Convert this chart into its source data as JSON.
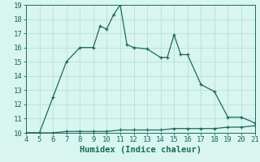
{
  "title": "",
  "xlabel": "Humidex (Indice chaleur)",
  "x_values": [
    4,
    5,
    6,
    7,
    8,
    9,
    9.5,
    10,
    10.5,
    11,
    11.5,
    12,
    13,
    14,
    14.5,
    15,
    15.5,
    16,
    17,
    18,
    19,
    20,
    21
  ],
  "y_values": [
    10,
    10,
    12.5,
    15,
    16,
    16,
    17.5,
    17.3,
    18.3,
    19,
    16.2,
    16,
    15.9,
    15.3,
    15.3,
    16.9,
    15.5,
    15.5,
    13.4,
    12.9,
    11.1,
    11.1,
    10.7
  ],
  "x2_values": [
    4,
    5,
    6,
    7,
    8,
    9,
    10,
    11,
    12,
    13,
    14,
    15,
    16,
    17,
    18,
    19,
    20,
    21
  ],
  "y2_values": [
    10,
    10,
    10,
    10.1,
    10.1,
    10.1,
    10.1,
    10.2,
    10.2,
    10.2,
    10.2,
    10.3,
    10.3,
    10.3,
    10.3,
    10.4,
    10.4,
    10.5
  ],
  "xlim": [
    4,
    21
  ],
  "ylim": [
    10,
    19
  ],
  "xticks": [
    4,
    5,
    6,
    7,
    8,
    9,
    10,
    11,
    12,
    13,
    14,
    15,
    16,
    17,
    18,
    19,
    20,
    21
  ],
  "yticks": [
    10,
    11,
    12,
    13,
    14,
    15,
    16,
    17,
    18,
    19
  ],
  "line_color": "#1a6b5a",
  "bg_color": "#d8f5f0",
  "grid_color": "#b0ddd4",
  "tick_fontsize": 6.5,
  "xlabel_fontsize": 7.5
}
